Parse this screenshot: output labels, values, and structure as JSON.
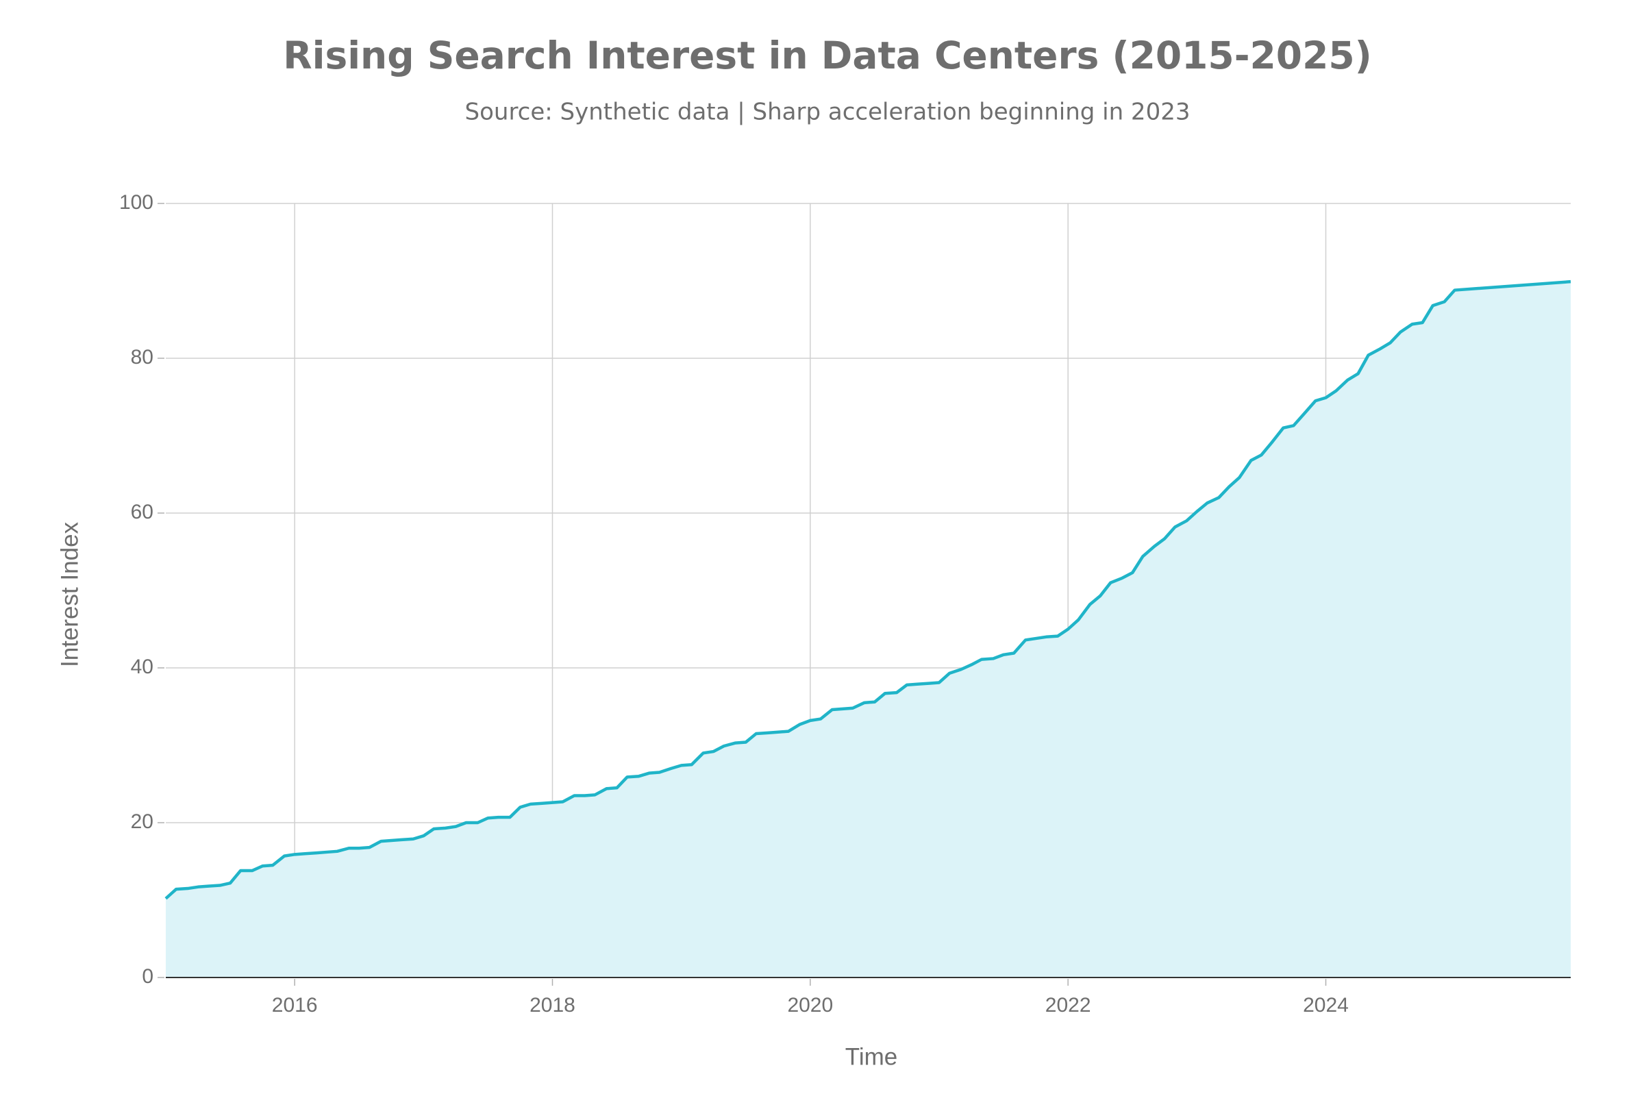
{
  "chart_data": {
    "type": "area",
    "title": "Rising Search Interest in Data Centers (2015-2025)",
    "subtitle": "Source: Synthetic data | Sharp acceleration beginning in 2023",
    "xlabel": "Time",
    "ylabel": "Interest Index",
    "xlim": [
      2015.0,
      2025.9
    ],
    "ylim": [
      0,
      100
    ],
    "x_ticks": [
      2016,
      2018,
      2020,
      2022,
      2024
    ],
    "x_tick_labels": [
      "2016",
      "2018",
      "2020",
      "2022",
      "2024"
    ],
    "y_ticks": [
      0,
      20,
      40,
      60,
      80,
      100
    ],
    "y_tick_labels": [
      "0",
      "20",
      "40",
      "60",
      "80",
      "100"
    ],
    "grid": true,
    "legend": "none",
    "colors": {
      "line": "#20b4c8",
      "fill": "#dcf3f8",
      "grid": "#d0d0d0",
      "axis": "#333333",
      "text": "#6e6e6e"
    },
    "series": [
      {
        "x": [
          2015.0,
          2015.08,
          2015.17,
          2015.25,
          2015.33,
          2015.42,
          2015.5,
          2015.58,
          2015.67,
          2015.75,
          2015.83,
          2015.92,
          2016.0,
          2016.08,
          2016.17,
          2016.25,
          2016.33,
          2016.42,
          2016.5,
          2016.58,
          2016.67,
          2016.75,
          2016.83,
          2016.92,
          2017.0,
          2017.08,
          2017.17,
          2017.25,
          2017.33,
          2017.42,
          2017.5,
          2017.58,
          2017.67,
          2017.75,
          2017.83,
          2017.92,
          2018.0,
          2018.08,
          2018.17,
          2018.25,
          2018.33,
          2018.42,
          2018.5,
          2018.58,
          2018.67,
          2018.75,
          2018.83,
          2018.92,
          2019.0,
          2019.08,
          2019.17,
          2019.25,
          2019.33,
          2019.42,
          2019.5,
          2019.58,
          2019.67,
          2019.75,
          2019.83,
          2019.92,
          2020.0,
          2020.08,
          2020.17,
          2020.25,
          2020.33,
          2020.42,
          2020.5,
          2020.58,
          2020.67,
          2020.75,
          2020.83,
          2020.92,
          2021.0,
          2021.08,
          2021.17,
          2021.25,
          2021.33,
          2021.42,
          2021.5,
          2021.58,
          2021.67,
          2021.75,
          2021.83,
          2021.92,
          2022.0,
          2022.08,
          2022.17,
          2022.25,
          2022.33,
          2022.42,
          2022.5,
          2022.58,
          2022.67,
          2022.75,
          2022.83,
          2022.92,
          2023.0,
          2023.08,
          2023.17,
          2023.25,
          2023.33,
          2023.42,
          2023.5,
          2023.58,
          2023.67,
          2023.75,
          2023.83,
          2023.92,
          2024.0,
          2024.08,
          2024.17,
          2024.25,
          2024.33,
          2024.42,
          2024.5,
          2024.58,
          2024.67,
          2024.75,
          2024.83,
          2024.92,
          2025.0,
          2025.9
        ],
        "y": [
          10.2,
          11.4,
          11.5,
          11.7,
          11.8,
          11.9,
          12.2,
          13.8,
          13.8,
          14.4,
          14.5,
          15.7,
          15.9,
          16.0,
          16.1,
          16.2,
          16.3,
          16.7,
          16.7,
          16.8,
          17.6,
          17.7,
          17.8,
          17.9,
          18.3,
          19.2,
          19.3,
          19.5,
          20.0,
          20.0,
          20.6,
          20.7,
          20.7,
          22.0,
          22.4,
          22.5,
          22.6,
          22.7,
          23.5,
          23.5,
          23.6,
          24.4,
          24.5,
          25.9,
          26.0,
          26.4,
          26.5,
          27.0,
          27.4,
          27.5,
          29.0,
          29.2,
          29.9,
          30.3,
          30.4,
          31.5,
          31.6,
          31.7,
          31.8,
          32.7,
          33.2,
          33.4,
          34.6,
          34.7,
          34.8,
          35.5,
          35.6,
          36.7,
          36.8,
          37.8,
          37.9,
          38.0,
          38.1,
          39.3,
          39.8,
          40.4,
          41.1,
          41.2,
          41.7,
          41.9,
          43.6,
          43.8,
          44.0,
          44.1,
          45.0,
          46.2,
          48.2,
          49.3,
          51.0,
          51.6,
          52.3,
          54.4,
          55.7,
          56.7,
          58.2,
          59.0,
          60.2,
          61.3,
          62.0,
          63.4,
          64.6,
          66.8,
          67.5,
          69.1,
          71.0,
          71.3,
          72.8,
          74.5,
          74.9,
          75.8,
          77.2,
          78.0,
          80.4,
          81.2,
          82.0,
          83.4,
          84.4,
          84.6,
          86.8,
          87.3,
          88.8,
          89.9
        ]
      }
    ]
  }
}
